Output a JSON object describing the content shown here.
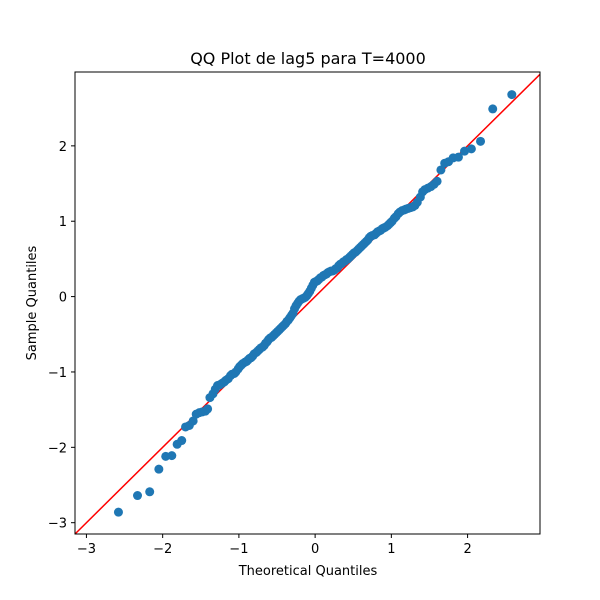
{
  "chart_data": {
    "type": "scatter",
    "title": "QQ Plot de lag5 para T=4000",
    "xlabel": "Theoretical Quantiles",
    "ylabel": "Sample Quantiles",
    "xlim": [
      -3.15,
      2.95
    ],
    "ylim": [
      -3.15,
      2.98
    ],
    "xticks": [
      -3,
      -2,
      -1,
      0,
      1,
      2
    ],
    "yticks": [
      -3,
      -2,
      -1,
      0,
      1,
      2
    ],
    "grid": false,
    "colors": {
      "points": "#1f77b4",
      "line": "#ff0000"
    },
    "reference_line": {
      "slope": 1,
      "intercept": 0
    },
    "series": [
      {
        "points": [
          [
            -2.58,
            -2.86
          ],
          [
            -2.33,
            -2.64
          ],
          [
            -2.17,
            -2.59
          ],
          [
            -2.05,
            -2.29
          ],
          [
            -1.96,
            -2.12
          ],
          [
            -1.88,
            -2.11
          ],
          [
            -1.81,
            -1.96
          ],
          [
            -1.75,
            -1.91
          ],
          [
            -1.7,
            -1.73
          ],
          [
            -1.65,
            -1.71
          ],
          [
            -1.6,
            -1.65
          ],
          [
            -1.56,
            -1.56
          ],
          [
            -1.52,
            -1.54
          ],
          [
            -1.48,
            -1.53
          ],
          [
            -1.44,
            -1.52
          ],
          [
            -1.41,
            -1.49
          ],
          [
            -1.38,
            -1.34
          ],
          [
            -1.34,
            -1.29
          ],
          [
            -1.31,
            -1.23
          ],
          [
            -1.28,
            -1.18
          ],
          [
            -1.25,
            -1.17
          ],
          [
            -1.22,
            -1.15
          ],
          [
            -1.19,
            -1.13
          ],
          [
            -1.17,
            -1.11
          ],
          [
            -1.14,
            -1.09
          ],
          [
            -1.11,
            -1.05
          ],
          [
            -1.09,
            -1.03
          ],
          [
            -1.06,
            -1.02
          ],
          [
            -1.04,
            -1.0
          ],
          [
            -1.01,
            -0.96
          ],
          [
            -0.99,
            -0.93
          ],
          [
            -0.97,
            -0.91
          ],
          [
            -0.95,
            -0.89
          ],
          [
            -0.92,
            -0.87
          ],
          [
            -0.9,
            -0.86
          ],
          [
            -0.88,
            -0.84
          ],
          [
            -0.86,
            -0.82
          ],
          [
            -0.84,
            -0.81
          ],
          [
            -0.82,
            -0.79
          ],
          [
            -0.8,
            -0.76
          ],
          [
            -0.77,
            -0.74
          ],
          [
            -0.75,
            -0.72
          ],
          [
            -0.73,
            -0.7
          ],
          [
            -0.71,
            -0.68
          ],
          [
            -0.69,
            -0.67
          ],
          [
            -0.67,
            -0.65
          ],
          [
            -0.65,
            -0.62
          ],
          [
            -0.63,
            -0.6
          ],
          [
            -0.61,
            -0.57
          ],
          [
            -0.59,
            -0.55
          ],
          [
            -0.57,
            -0.54
          ],
          [
            -0.55,
            -0.52
          ],
          [
            -0.53,
            -0.5
          ],
          [
            -0.51,
            -0.48
          ],
          [
            -0.49,
            -0.46
          ],
          [
            -0.47,
            -0.44
          ],
          [
            -0.45,
            -0.42
          ],
          [
            -0.43,
            -0.4
          ],
          [
            -0.41,
            -0.38
          ],
          [
            -0.39,
            -0.36
          ],
          [
            -0.37,
            -0.33
          ],
          [
            -0.35,
            -0.31
          ],
          [
            -0.33,
            -0.28
          ],
          [
            -0.31,
            -0.25
          ],
          [
            -0.29,
            -0.22
          ],
          [
            -0.27,
            -0.16
          ],
          [
            -0.25,
            -0.12
          ],
          [
            -0.23,
            -0.09
          ],
          [
            -0.21,
            -0.06
          ],
          [
            -0.19,
            -0.04
          ],
          [
            -0.17,
            -0.03
          ],
          [
            -0.15,
            -0.02
          ],
          [
            -0.13,
            -0.01
          ],
          [
            -0.11,
            0.01
          ],
          [
            -0.09,
            0.04
          ],
          [
            -0.07,
            0.07
          ],
          [
            -0.05,
            0.11
          ],
          [
            -0.03,
            0.15
          ],
          [
            -0.01,
            0.19
          ],
          [
            0.01,
            0.2
          ],
          [
            0.03,
            0.21
          ],
          [
            0.05,
            0.23
          ],
          [
            0.07,
            0.25
          ],
          [
            0.09,
            0.26
          ],
          [
            0.11,
            0.28
          ],
          [
            0.13,
            0.29
          ],
          [
            0.15,
            0.3
          ],
          [
            0.17,
            0.32
          ],
          [
            0.19,
            0.33
          ],
          [
            0.21,
            0.34
          ],
          [
            0.23,
            0.34
          ],
          [
            0.25,
            0.35
          ],
          [
            0.27,
            0.37
          ],
          [
            0.29,
            0.38
          ],
          [
            0.31,
            0.41
          ],
          [
            0.33,
            0.43
          ],
          [
            0.35,
            0.44
          ],
          [
            0.37,
            0.46
          ],
          [
            0.39,
            0.47
          ],
          [
            0.41,
            0.49
          ],
          [
            0.43,
            0.5
          ],
          [
            0.45,
            0.52
          ],
          [
            0.47,
            0.54
          ],
          [
            0.49,
            0.56
          ],
          [
            0.51,
            0.58
          ],
          [
            0.53,
            0.59
          ],
          [
            0.55,
            0.61
          ],
          [
            0.57,
            0.63
          ],
          [
            0.59,
            0.65
          ],
          [
            0.61,
            0.67
          ],
          [
            0.63,
            0.69
          ],
          [
            0.65,
            0.71
          ],
          [
            0.67,
            0.73
          ],
          [
            0.69,
            0.75
          ],
          [
            0.71,
            0.78
          ],
          [
            0.73,
            0.8
          ],
          [
            0.75,
            0.81
          ],
          [
            0.78,
            0.82
          ],
          [
            0.8,
            0.84
          ],
          [
            0.82,
            0.86
          ],
          [
            0.84,
            0.87
          ],
          [
            0.86,
            0.88
          ],
          [
            0.88,
            0.9
          ],
          [
            0.9,
            0.91
          ],
          [
            0.92,
            0.92
          ],
          [
            0.95,
            0.94
          ],
          [
            0.97,
            0.96
          ],
          [
            0.99,
            0.98
          ],
          [
            1.01,
            1.0
          ],
          [
            1.04,
            1.04
          ],
          [
            1.06,
            1.06
          ],
          [
            1.09,
            1.1
          ],
          [
            1.11,
            1.12
          ],
          [
            1.14,
            1.14
          ],
          [
            1.17,
            1.15
          ],
          [
            1.19,
            1.16
          ],
          [
            1.22,
            1.17
          ],
          [
            1.25,
            1.18
          ],
          [
            1.28,
            1.19
          ],
          [
            1.31,
            1.21
          ],
          [
            1.34,
            1.25
          ],
          [
            1.38,
            1.32
          ],
          [
            1.41,
            1.39
          ],
          [
            1.44,
            1.42
          ],
          [
            1.48,
            1.44
          ],
          [
            1.52,
            1.46
          ],
          [
            1.56,
            1.49
          ],
          [
            1.6,
            1.53
          ],
          [
            1.65,
            1.68
          ],
          [
            1.7,
            1.77
          ],
          [
            1.75,
            1.79
          ],
          [
            1.81,
            1.84
          ],
          [
            1.88,
            1.85
          ],
          [
            1.96,
            1.93
          ],
          [
            2.05,
            1.96
          ],
          [
            2.17,
            2.06
          ],
          [
            2.33,
            2.49
          ],
          [
            2.58,
            2.68
          ]
        ]
      }
    ]
  }
}
